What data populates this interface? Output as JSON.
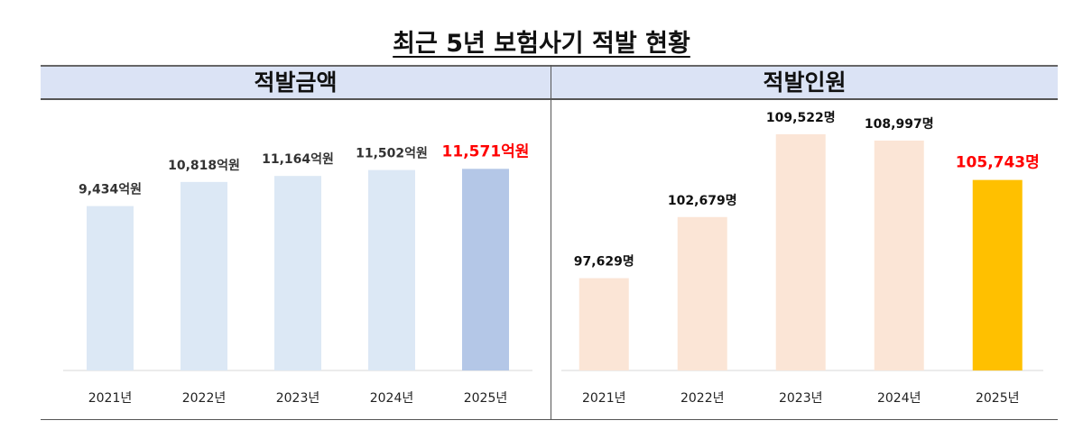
{
  "title": "최근 5년 보험사기 적발 현황",
  "chart_data": [
    {
      "type": "bar",
      "title": "적발금액",
      "categories": [
        "2021년",
        "2022년",
        "2023년",
        "2024년",
        "2025년"
      ],
      "values": [
        9434,
        10818,
        11164,
        11502,
        11571
      ],
      "labels": [
        "9,434억원",
        "10,818억원",
        "11,164억원",
        "11,502억원",
        "11,571억원"
      ],
      "unit": "억원",
      "ylim": [
        0,
        15000
      ],
      "grid": false,
      "colors": [
        "#dce8f5",
        "#dce8f5",
        "#dce8f5",
        "#dce8f5",
        "#b4c7e7"
      ],
      "label_colors": [
        "#333333",
        "#333333",
        "#333333",
        "#333333",
        "#ff0000"
      ]
    },
    {
      "type": "bar",
      "title": "적발인원",
      "categories": [
        "2021년",
        "2022년",
        "2023년",
        "2024년",
        "2025년"
      ],
      "values": [
        97629,
        102679,
        109522,
        108997,
        105743
      ],
      "labels": [
        "97,629명",
        "102,679명",
        "109,522명",
        "108,997명",
        "105,743명"
      ],
      "unit": "명",
      "ylim": [
        90000,
        111600
      ],
      "grid": false,
      "colors": [
        "#fbe5d6",
        "#fbe5d6",
        "#fbe5d6",
        "#fbe5d6",
        "#ffc000"
      ],
      "label_colors": [
        "#111111",
        "#111111",
        "#111111",
        "#111111",
        "#ff0000"
      ]
    }
  ]
}
